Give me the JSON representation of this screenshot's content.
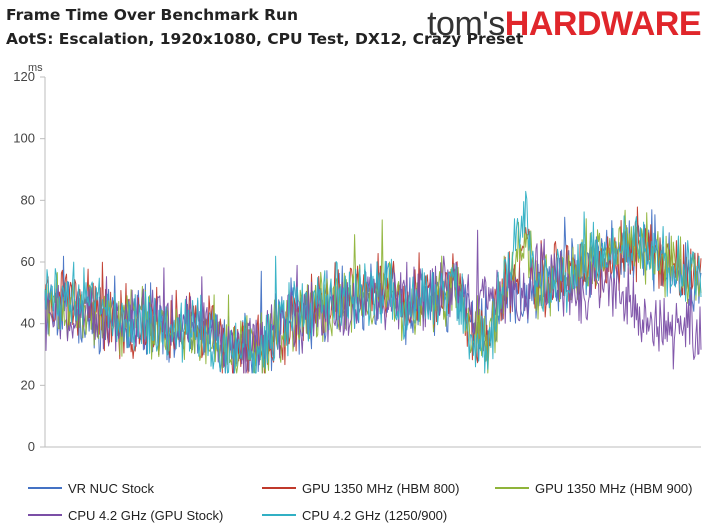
{
  "header": {
    "title": "Frame Time Over Benchmark Run",
    "subtitle": "AotS: Escalation, 1920x1080, CPU Test, DX12, Crazy Preset",
    "logo_part1": "tom's",
    "logo_part2": "HARDWARE"
  },
  "chart_data": {
    "type": "line",
    "title": "Frame Time Over Benchmark Run",
    "subtitle": "AotS: Escalation, 1920x1080, CPU Test, DX12, Crazy Preset",
    "ylabel": "ms",
    "ylim": [
      0,
      120
    ],
    "yticks": [
      0,
      20,
      40,
      60,
      80,
      100,
      120
    ],
    "xlim": [
      0,
      200
    ],
    "legend_position": "bottom",
    "grid": false,
    "series_keypoints_note_excluded": true,
    "series": [
      {
        "name": "VR NUC Stock",
        "color": "#4472c4",
        "keypoints": [
          [
            0,
            45
          ],
          [
            10,
            44
          ],
          [
            20,
            40
          ],
          [
            30,
            41
          ],
          [
            40,
            38
          ],
          [
            50,
            37
          ],
          [
            55,
            32
          ],
          [
            65,
            33
          ],
          [
            75,
            40
          ],
          [
            85,
            46
          ],
          [
            95,
            48
          ],
          [
            105,
            50
          ],
          [
            110,
            44
          ],
          [
            118,
            47
          ],
          [
            125,
            50
          ],
          [
            130,
            38
          ],
          [
            135,
            35
          ],
          [
            140,
            50
          ],
          [
            146,
            46
          ],
          [
            150,
            52
          ],
          [
            160,
            56
          ],
          [
            170,
            62
          ],
          [
            180,
            66
          ],
          [
            190,
            58
          ],
          [
            200,
            55
          ]
        ]
      },
      {
        "name": "GPU 1350 MHz (HBM 800)",
        "color": "#c0392b",
        "keypoints": [
          [
            0,
            46
          ],
          [
            10,
            48
          ],
          [
            20,
            42
          ],
          [
            30,
            40
          ],
          [
            40,
            40
          ],
          [
            50,
            38
          ],
          [
            55,
            30
          ],
          [
            65,
            32
          ],
          [
            75,
            41
          ],
          [
            85,
            47
          ],
          [
            95,
            49
          ],
          [
            105,
            52
          ],
          [
            110,
            46
          ],
          [
            118,
            50
          ],
          [
            125,
            51
          ],
          [
            130,
            36
          ],
          [
            135,
            34
          ],
          [
            140,
            52
          ],
          [
            146,
            62
          ],
          [
            150,
            54
          ],
          [
            160,
            58
          ],
          [
            170,
            60
          ],
          [
            180,
            65
          ],
          [
            190,
            60
          ],
          [
            200,
            54
          ]
        ]
      },
      {
        "name": "GPU 1350 MHz (HBM 900)",
        "color": "#8fb43a",
        "keypoints": [
          [
            0,
            44
          ],
          [
            10,
            46
          ],
          [
            20,
            40
          ],
          [
            30,
            42
          ],
          [
            40,
            38
          ],
          [
            50,
            36
          ],
          [
            55,
            30
          ],
          [
            65,
            33
          ],
          [
            75,
            40
          ],
          [
            85,
            46
          ],
          [
            95,
            47
          ],
          [
            105,
            49
          ],
          [
            110,
            44
          ],
          [
            118,
            48
          ],
          [
            125,
            50
          ],
          [
            130,
            37
          ],
          [
            135,
            34
          ],
          [
            140,
            50
          ],
          [
            146,
            68
          ],
          [
            150,
            52
          ],
          [
            160,
            56
          ],
          [
            170,
            62
          ],
          [
            180,
            67
          ],
          [
            190,
            60
          ],
          [
            200,
            53
          ]
        ]
      },
      {
        "name": "CPU 4.2 GHz (GPU Stock)",
        "color": "#7b4fa6",
        "keypoints": [
          [
            0,
            42
          ],
          [
            10,
            45
          ],
          [
            20,
            40
          ],
          [
            30,
            41
          ],
          [
            40,
            42
          ],
          [
            50,
            40
          ],
          [
            55,
            32
          ],
          [
            65,
            34
          ],
          [
            75,
            40
          ],
          [
            85,
            44
          ],
          [
            95,
            47
          ],
          [
            105,
            49
          ],
          [
            110,
            50
          ],
          [
            118,
            48
          ],
          [
            125,
            52
          ],
          [
            130,
            46
          ],
          [
            135,
            48
          ],
          [
            140,
            50
          ],
          [
            146,
            48
          ],
          [
            150,
            58
          ],
          [
            160,
            50
          ],
          [
            170,
            52
          ],
          [
            180,
            45
          ],
          [
            190,
            38
          ],
          [
            200,
            36
          ]
        ]
      },
      {
        "name": "CPU 4.2 GHz (1250/900)",
        "color": "#31b0c4",
        "keypoints": [
          [
            0,
            47
          ],
          [
            10,
            52
          ],
          [
            20,
            41
          ],
          [
            30,
            40
          ],
          [
            40,
            39
          ],
          [
            50,
            37
          ],
          [
            55,
            29
          ],
          [
            65,
            32
          ],
          [
            75,
            42
          ],
          [
            85,
            48
          ],
          [
            95,
            49
          ],
          [
            105,
            52
          ],
          [
            110,
            45
          ],
          [
            118,
            49
          ],
          [
            125,
            51
          ],
          [
            130,
            35
          ],
          [
            135,
            33
          ],
          [
            140,
            52
          ],
          [
            146,
            75
          ],
          [
            150,
            52
          ],
          [
            160,
            56
          ],
          [
            170,
            62
          ],
          [
            180,
            66
          ],
          [
            190,
            59
          ],
          [
            200,
            54
          ]
        ]
      }
    ]
  }
}
